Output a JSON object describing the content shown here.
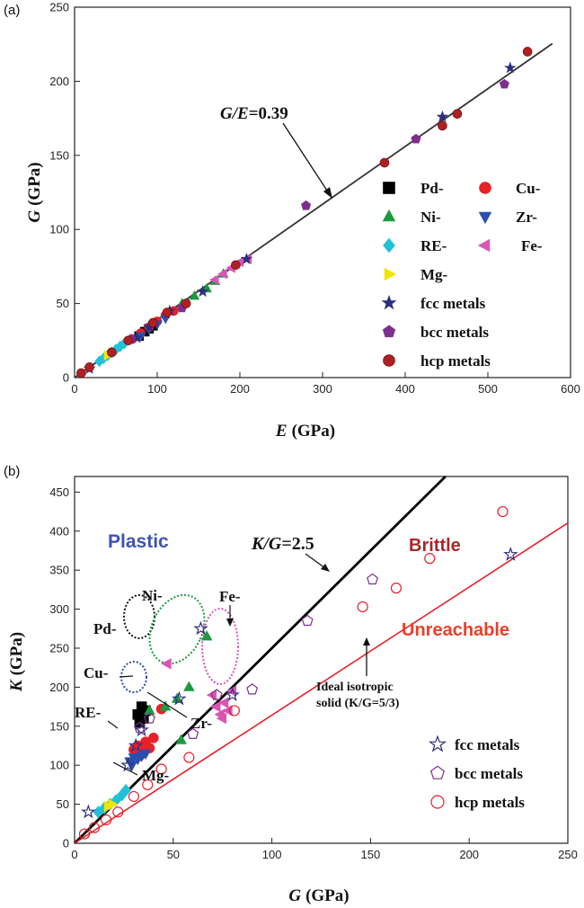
{
  "chart_data": [
    {
      "panel": "(a)",
      "type": "scatter",
      "xlabel_var": "E",
      "xlabel_unit": "(GPa)",
      "ylabel_var": "G",
      "ylabel_unit": "(GPa)",
      "xlim": [
        0,
        600
      ],
      "ylim": [
        0,
        250
      ],
      "xticks": [
        0,
        100,
        200,
        300,
        400,
        500,
        600
      ],
      "yticks": [
        0,
        50,
        100,
        150,
        200,
        250
      ],
      "grid": false,
      "legend_position": "lower-right",
      "fit_line": {
        "label_var": "G/E",
        "label_value": "=0.39",
        "slope": 0.39,
        "x": [
          0,
          578
        ]
      },
      "series": [
        {
          "name": "Pd-",
          "marker": "square",
          "color": "#000000",
          "points": [
            [
              78,
              28
            ],
            [
              85,
              31
            ],
            [
              90,
              33
            ],
            [
              95,
              35
            ]
          ]
        },
        {
          "name": "Cu-",
          "marker": "circle",
          "color": "#e8202a",
          "points": [
            [
              70,
              26
            ],
            [
              80,
              30
            ],
            [
              90,
              34
            ],
            [
              100,
              38
            ],
            [
              110,
              42
            ],
            [
              120,
              45
            ]
          ]
        },
        {
          "name": "Ni-",
          "marker": "triangle-up",
          "color": "#1c9a3f",
          "points": [
            [
              130,
              50
            ],
            [
              145,
              55
            ],
            [
              160,
              60
            ],
            [
              170,
              65
            ],
            [
              180,
              70
            ]
          ]
        },
        {
          "name": "Zr-",
          "marker": "triangle-down",
          "color": "#2b4fb0",
          "points": [
            [
              80,
              28
            ],
            [
              90,
              33
            ],
            [
              100,
              36
            ],
            [
              110,
              40
            ]
          ]
        },
        {
          "name": "RE-",
          "marker": "diamond",
          "color": "#22c1d6",
          "points": [
            [
              30,
              11
            ],
            [
              35,
              13
            ],
            [
              40,
              15
            ],
            [
              45,
              17
            ],
            [
              50,
              19
            ],
            [
              55,
              21
            ],
            [
              60,
              23
            ]
          ]
        },
        {
          "name": "Fe-",
          "marker": "triangle-left",
          "color": "#d955b5",
          "points": [
            [
              170,
              66
            ],
            [
              180,
              70
            ],
            [
              190,
              74
            ],
            [
              200,
              78
            ],
            [
              210,
              80
            ]
          ]
        },
        {
          "name": "Mg-",
          "marker": "triangle-right",
          "color": "#f2e600",
          "points": [
            [
              40,
              15
            ],
            [
              45,
              17
            ]
          ]
        },
        {
          "name": "fcc metals",
          "marker": "star",
          "color": "#2d2f7e",
          "points": [
            [
              18,
              6
            ],
            [
              75,
              27
            ],
            [
              90,
              34
            ],
            [
              115,
              45
            ],
            [
              155,
              58
            ],
            [
              208,
              80
            ],
            [
              445,
              176
            ],
            [
              527,
              209
            ]
          ]
        },
        {
          "name": "bcc metals",
          "marker": "pentagon",
          "color": "#7e2f8e",
          "points": [
            [
              68,
              26
            ],
            [
              130,
              47
            ],
            [
              280,
              116
            ],
            [
              413,
              161
            ],
            [
              520,
              198
            ]
          ]
        },
        {
          "name": "hcp metals",
          "marker": "sphere",
          "color": "#b01f24",
          "points": [
            [
              8,
              3
            ],
            [
              18,
              7
            ],
            [
              45,
              17
            ],
            [
              65,
              25
            ],
            [
              95,
              37
            ],
            [
              112,
              44
            ],
            [
              135,
              50
            ],
            [
              195,
              76
            ],
            [
              375,
              145
            ],
            [
              445,
              170
            ],
            [
              463,
              178
            ],
            [
              548,
              220
            ]
          ]
        }
      ]
    },
    {
      "panel": "(b)",
      "type": "scatter",
      "xlabel_var": "G",
      "xlabel_unit": "(GPa)",
      "ylabel_var": "K",
      "ylabel_unit": "(GPa)",
      "xlim": [
        0,
        250
      ],
      "ylim": [
        0,
        470
      ],
      "xticks": [
        0,
        50,
        100,
        150,
        200,
        250
      ],
      "yticks": [
        0,
        50,
        100,
        150,
        200,
        250,
        300,
        350,
        400,
        450
      ],
      "grid": false,
      "legend_position": "lower-right",
      "lines": [
        {
          "label_var": "K/G",
          "label_value": "=2.5",
          "slope": 2.5,
          "color": "#000000"
        },
        {
          "label_line1": "Ideal isotropic",
          "label_line2": "solid (K/G=5/3)",
          "slope": 1.6667,
          "color": "#e8202a"
        }
      ],
      "regions": {
        "plastic": "Plastic",
        "brittle": "Brittle",
        "unreachable": "Unreachable"
      },
      "group_labels": {
        "pd": "Pd-",
        "cu": "Cu-",
        "re": "RE-",
        "ni": "Ni-",
        "fe": "Fe-",
        "zr": "Zr-",
        "mg": "Mg-"
      },
      "series": [
        {
          "name": "Pd-",
          "marker": "square",
          "color": "#000000",
          "points": [
            [
              32,
              165
            ],
            [
              34,
              175
            ],
            [
              36,
              170
            ],
            [
              33,
              155
            ],
            [
              35,
              160
            ]
          ]
        },
        {
          "name": "Cu-",
          "marker": "circle",
          "color": "#e8202a",
          "points": [
            [
              30,
              120
            ],
            [
              32,
              125
            ],
            [
              34,
              118
            ],
            [
              36,
              130
            ],
            [
              38,
              122
            ],
            [
              33,
              112
            ],
            [
              40,
              135
            ],
            [
              44,
              172
            ]
          ]
        },
        {
          "name": "Ni-",
          "marker": "triangle-up",
          "color": "#1c9a3f",
          "points": [
            [
              38,
              170
            ],
            [
              46,
              175
            ],
            [
              52,
              185
            ],
            [
              58,
              200
            ],
            [
              54,
              132
            ],
            [
              67,
              265
            ]
          ]
        },
        {
          "name": "Zr-",
          "marker": "triangle-down",
          "color": "#2b4fb0",
          "points": [
            [
              28,
              105
            ],
            [
              30,
              110
            ],
            [
              32,
              108
            ],
            [
              34,
              112
            ],
            [
              36,
              115
            ],
            [
              29,
              100
            ]
          ]
        },
        {
          "name": "RE-",
          "marker": "diamond",
          "color": "#22c1d6",
          "points": [
            [
              12,
              40
            ],
            [
              15,
              45
            ],
            [
              18,
              50
            ],
            [
              21,
              55
            ],
            [
              24,
              62
            ],
            [
              26,
              68
            ]
          ]
        },
        {
          "name": "Fe-",
          "marker": "triangle-left",
          "color": "#d955b5",
          "points": [
            [
              70,
              190
            ],
            [
              72,
              175
            ],
            [
              74,
              165
            ],
            [
              76,
              180
            ],
            [
              78,
              170
            ],
            [
              75,
              160
            ],
            [
              47,
              230
            ],
            [
              80,
              195
            ]
          ]
        },
        {
          "name": "Mg-",
          "marker": "triangle-right",
          "color": "#f2e600",
          "points": [
            [
              17,
              47
            ],
            [
              19,
              50
            ]
          ]
        },
        {
          "name": "fcc metals",
          "marker": "star-open",
          "color": "#2d2f7e",
          "points": [
            [
              7,
              40
            ],
            [
              27,
              100
            ],
            [
              31,
              125
            ],
            [
              34,
              145
            ],
            [
              53,
              185
            ],
            [
              64,
              275
            ],
            [
              80,
              190
            ],
            [
              221,
              370
            ]
          ]
        },
        {
          "name": "bcc metals",
          "marker": "pentagon-open",
          "color": "#7e2f8e",
          "points": [
            [
              33,
              148
            ],
            [
              38,
              160
            ],
            [
              60,
              140
            ],
            [
              72,
              190
            ],
            [
              90,
              197
            ],
            [
              118,
              285
            ],
            [
              151,
              338
            ]
          ]
        },
        {
          "name": "hcp metals",
          "marker": "circle-open",
          "color": "#e8202a",
          "points": [
            [
              5,
              12
            ],
            [
              10,
              20
            ],
            [
              16,
              30
            ],
            [
              22,
              40
            ],
            [
              30,
              60
            ],
            [
              37,
              75
            ],
            [
              44,
              95
            ],
            [
              58,
              110
            ],
            [
              81,
              170
            ],
            [
              146,
              303
            ],
            [
              163,
              327
            ],
            [
              180,
              365
            ],
            [
              217,
              425
            ]
          ]
        }
      ]
    }
  ]
}
